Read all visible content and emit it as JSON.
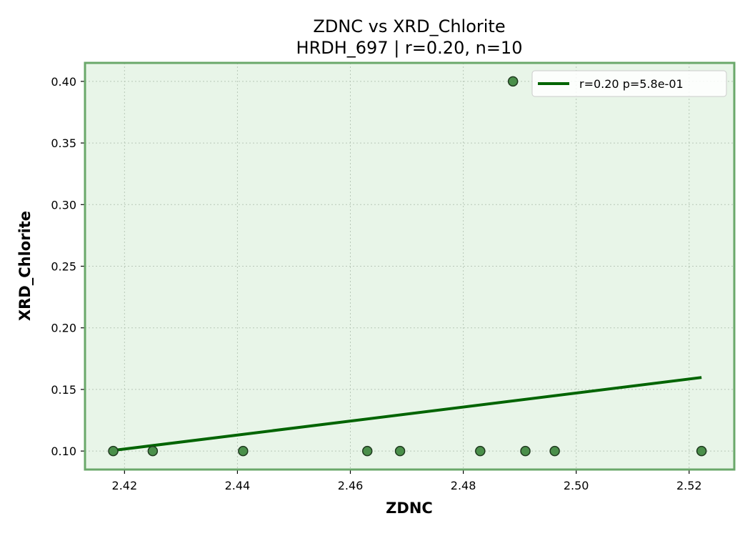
{
  "chart_data": {
    "type": "scatter",
    "title": "ZDNC vs XRD_Chlorite",
    "subtitle": "HRDH_697 | r=0.20, n=10",
    "xlabel": "ZDNC",
    "ylabel": "XRD_Chlorite",
    "xlim": [
      2.413,
      2.528
    ],
    "ylim": [
      0.085,
      0.415
    ],
    "xticks": [
      2.42,
      2.44,
      2.46,
      2.48,
      2.5,
      2.52
    ],
    "xtick_labels": [
      "2.42",
      "2.44",
      "2.46",
      "2.48",
      "2.50",
      "2.52"
    ],
    "yticks": [
      0.1,
      0.15,
      0.2,
      0.25,
      0.3,
      0.35,
      0.4
    ],
    "ytick_labels": [
      "0.10",
      "0.15",
      "0.20",
      "0.25",
      "0.30",
      "0.35",
      "0.40"
    ],
    "grid": true,
    "legend_position": "top-right",
    "legend": {
      "label": "r=0.20  p=5.8e-01"
    },
    "points": [
      {
        "x": 2.418,
        "y": 0.1
      },
      {
        "x": 2.425,
        "y": 0.1
      },
      {
        "x": 2.441,
        "y": 0.1
      },
      {
        "x": 2.463,
        "y": 0.1
      },
      {
        "x": 2.4688,
        "y": 0.1
      },
      {
        "x": 2.483,
        "y": 0.1
      },
      {
        "x": 2.4888,
        "y": 0.4
      },
      {
        "x": 2.491,
        "y": 0.1
      },
      {
        "x": 2.4962,
        "y": 0.1
      },
      {
        "x": 2.5222,
        "y": 0.1
      }
    ],
    "fit_line": {
      "x": [
        2.418,
        2.5222
      ],
      "y": [
        0.1005,
        0.1597
      ]
    },
    "colors": {
      "plot_background": "#e8f5e8",
      "plot_border": "#6aa86a",
      "point_fill": "#4a8f4a",
      "point_edge": "#1f3a1f",
      "fit_line": "#006400",
      "grid": "#b8c8b8"
    }
  }
}
